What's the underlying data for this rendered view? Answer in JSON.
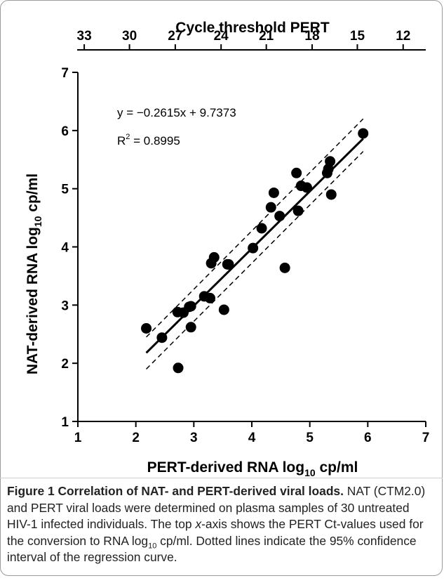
{
  "chart_data": {
    "type": "scatter",
    "xlabel_main": "PERT-derived RNA log",
    "xlabel_sub": "10",
    "xlabel_unit": " cp/ml",
    "ylabel_main": "NAT-derived RNA log",
    "ylabel_sub": "10",
    "ylabel_unit": " cp/ml",
    "top_axis_label": "Cycle threshold PERT",
    "xlim": [
      1,
      7
    ],
    "ylim": [
      1,
      7
    ],
    "x_ticks": [
      "1",
      "2",
      "3",
      "4",
      "5",
      "6",
      "7"
    ],
    "y_ticks": [
      "1",
      "2",
      "3",
      "4",
      "5",
      "6",
      "7"
    ],
    "top_ticks": [
      "33",
      "30",
      "27",
      "24",
      "21",
      "18",
      "15",
      "12"
    ],
    "top_tick_positions": [
      1.11,
      1.89,
      2.68,
      3.47,
      4.25,
      5.04,
      5.82,
      6.61
    ],
    "equation_text": "y = −0.2615x + 9.7373",
    "r2_prefix": "R",
    "r2_exp": "2",
    "r2_value": " = 0.8995",
    "regression": {
      "x": [
        2.18,
        5.92
      ],
      "y": [
        2.18,
        5.86
      ]
    },
    "ci_upper": {
      "x": [
        2.18,
        5.92
      ],
      "y": [
        2.45,
        6.2
      ]
    },
    "ci_lower": {
      "x": [
        2.18,
        5.92
      ],
      "y": [
        1.9,
        5.64
      ]
    },
    "points": {
      "x": [
        2.18,
        2.45,
        2.72,
        2.73,
        2.82,
        2.92,
        2.95,
        3.18,
        3.28,
        3.3,
        3.35,
        3.52,
        3.58,
        4.02,
        4.17,
        4.33,
        4.38,
        4.48,
        4.57,
        4.77,
        4.8,
        4.85,
        4.95,
        5.3,
        5.32,
        5.35,
        5.37,
        5.92,
        2.95,
        3.6
      ],
      "y": [
        2.6,
        2.44,
        2.88,
        1.92,
        2.87,
        2.97,
        2.62,
        3.15,
        3.12,
        3.72,
        3.82,
        2.92,
        3.7,
        3.98,
        4.32,
        4.68,
        4.93,
        4.53,
        3.64,
        5.27,
        4.62,
        5.05,
        5.02,
        5.27,
        5.34,
        5.47,
        4.9,
        5.95,
        2.98,
        3.7
      ]
    }
  },
  "caption": {
    "title": "Figure 1 Correlation of NAT- and PERT-derived viral loads.",
    "part1": " NAT (CTM2.0) and PERT viral loads were determined on plasma samples of 30 untreated HIV-1 infected individuals. The top ",
    "x_italic": "x",
    "part2": "-axis shows the PERT Ct-values used for the conversion to RNA log",
    "sub": "10",
    "part3": " cp/ml. Dotted lines indicate the 95% confidence interval of the regression curve."
  }
}
